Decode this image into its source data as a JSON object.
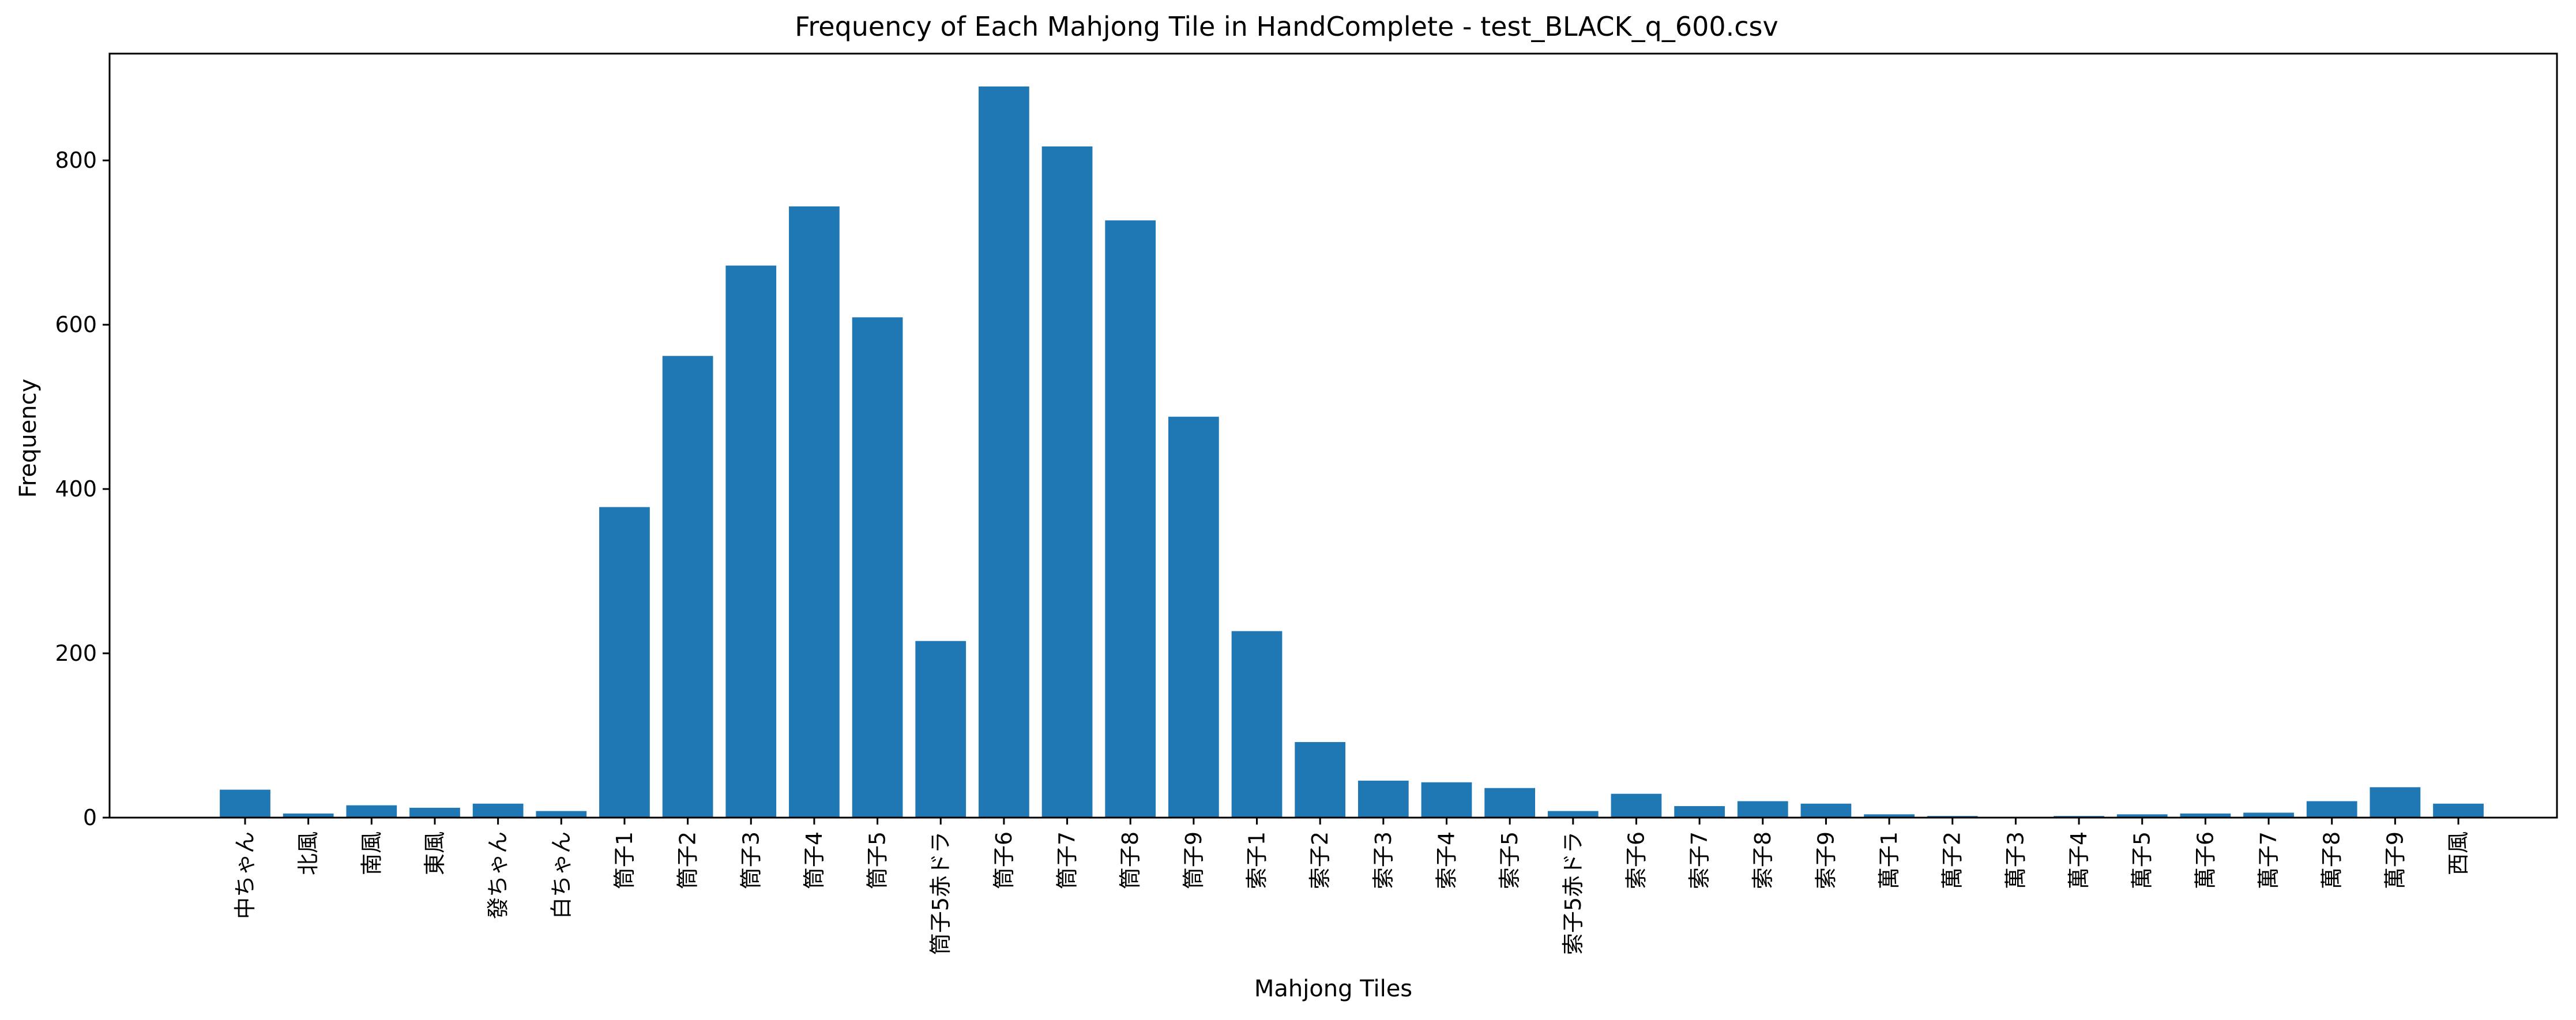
{
  "chart_data": {
    "type": "bar",
    "title": "Frequency of Each Mahjong Tile in HandComplete - test_BLACK_q_600.csv",
    "xlabel": "Mahjong Tiles",
    "ylabel": "Frequency",
    "ylim": [
      0,
      930
    ],
    "yticks": [
      0,
      200,
      400,
      600,
      800
    ],
    "grid": false,
    "bar_color": "#1f77b4",
    "categories": [
      "中ちゃん",
      "北風",
      "南風",
      "東風",
      "發ちゃん",
      "白ちゃん",
      "筒子1",
      "筒子2",
      "筒子3",
      "筒子4",
      "筒子5",
      "筒子5赤ドラ",
      "筒子6",
      "筒子7",
      "筒子8",
      "筒子9",
      "索子1",
      "索子2",
      "索子3",
      "索子4",
      "索子5",
      "索子5赤ドラ",
      "索子6",
      "索子7",
      "索子8",
      "索子9",
      "萬子1",
      "萬子2",
      "萬子3",
      "萬子4",
      "萬子5",
      "萬子6",
      "萬子7",
      "萬子8",
      "萬子9",
      "西風"
    ],
    "values": [
      34,
      5,
      15,
      12,
      17,
      8,
      378,
      562,
      672,
      744,
      609,
      215,
      890,
      817,
      727,
      488,
      227,
      92,
      45,
      43,
      36,
      8,
      29,
      14,
      20,
      17,
      4,
      2,
      1,
      2,
      4,
      5,
      6,
      20,
      37,
      17
    ]
  }
}
